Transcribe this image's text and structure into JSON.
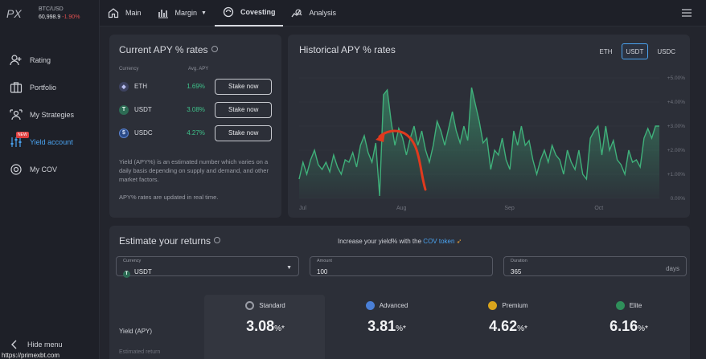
{
  "ticker": {
    "pair": "BTC/USD",
    "price": "60,998.9",
    "change": "-1.90%"
  },
  "sidebar": {
    "items": [
      {
        "label": "Rating",
        "icon": "user-plus-icon"
      },
      {
        "label": "Portfolio",
        "icon": "briefcase-icon"
      },
      {
        "label": "My Strategies",
        "icon": "strategies-icon"
      },
      {
        "label": "Yield account",
        "icon": "sliders-icon",
        "badge": "NEW"
      },
      {
        "label": "My COV",
        "icon": "cov-icon"
      }
    ],
    "hide_menu": "Hide menu"
  },
  "status_url": "https://primexbt.com",
  "topbar": {
    "tabs": [
      {
        "label": "Main"
      },
      {
        "label": "Margin"
      },
      {
        "label": "Covesting"
      },
      {
        "label": "Analysis"
      }
    ]
  },
  "apy": {
    "title": "Current APY % rates",
    "col_currency": "Currency",
    "col_avg": "Avg. APY",
    "rows": [
      {
        "coin": "ETH",
        "rate": "1.69%",
        "action": "Stake now"
      },
      {
        "coin": "USDT",
        "rate": "3.08%",
        "action": "Stake now"
      },
      {
        "coin": "USDC",
        "rate": "4.27%",
        "action": "Stake now"
      }
    ],
    "note": "Yield (APY%) is an estimated number which varies on a daily basis depending on supply and demand, and other market factors.",
    "note2": "APY% rates are updated in real time."
  },
  "historical": {
    "title": "Historical APY % rates",
    "coin_tabs": [
      "ETH",
      "USDT",
      "USDC"
    ],
    "active_tab": "USDT"
  },
  "chart_data": {
    "type": "area",
    "x_labels": [
      "Jul",
      "Aug",
      "Sep",
      "Oct"
    ],
    "y_ticks": [
      "0.00%",
      "+1.00%",
      "+2.00%",
      "+3.00%",
      "+4.00%",
      "+5.00%"
    ],
    "ylim": [
      0,
      5
    ],
    "color": "#3fb07a",
    "values": [
      0.8,
      1.5,
      1.0,
      1.6,
      2.0,
      1.4,
      1.2,
      1.5,
      1.1,
      1.8,
      1.3,
      1.0,
      1.6,
      1.5,
      1.9,
      1.3,
      2.2,
      2.6,
      1.9,
      1.5,
      2.3,
      0.1,
      4.3,
      4.5,
      3.2,
      2.2,
      2.9,
      2.5,
      1.8,
      2.5,
      3.0,
      2.2,
      2.8,
      2.0,
      1.5,
      2.2,
      3.2,
      2.8,
      2.2,
      2.9,
      3.6,
      2.8,
      2.3,
      3.0,
      2.4,
      4.6,
      3.9,
      3.2,
      2.3,
      2.5,
      1.2,
      2.0,
      1.8,
      2.5,
      1.6,
      1.2,
      2.8,
      2.2,
      3.0,
      2.2,
      2.4,
      1.6,
      1.0,
      1.6,
      2.0,
      1.5,
      2.2,
      1.8,
      1.6,
      1.0,
      2.0,
      1.5,
      1.2,
      2.0,
      1.0,
      0.8,
      2.5,
      2.8,
      3.0,
      1.8,
      3.0,
      2.0,
      2.4,
      1.6,
      1.4,
      1.0,
      2.0,
      1.5,
      1.6,
      1.3,
      2.5,
      2.9,
      2.5,
      3.0,
      3.0
    ]
  },
  "estimate": {
    "title": "Estimate your returns",
    "promo_prefix": "Increase your yield% with the",
    "promo_link": "COV token",
    "currency_label": "Currency",
    "currency_value": "USDT",
    "amount_label": "Amount",
    "amount_value": "100",
    "duration_label": "Duration",
    "duration_value": "365",
    "duration_unit": "days",
    "yield_label": "Yield (APY)",
    "estimated_label": "Estimated return",
    "tiers": [
      {
        "name": "Standard",
        "value": "3.08",
        "color": "#9a9da6"
      },
      {
        "name": "Advanced",
        "value": "3.81",
        "color": "#4a7fd6"
      },
      {
        "name": "Premium",
        "value": "4.62",
        "color": "#d9a41c"
      },
      {
        "name": "Elite",
        "value": "6.16",
        "color": "#2f8f5a"
      }
    ],
    "pct_suffix": "%*"
  }
}
